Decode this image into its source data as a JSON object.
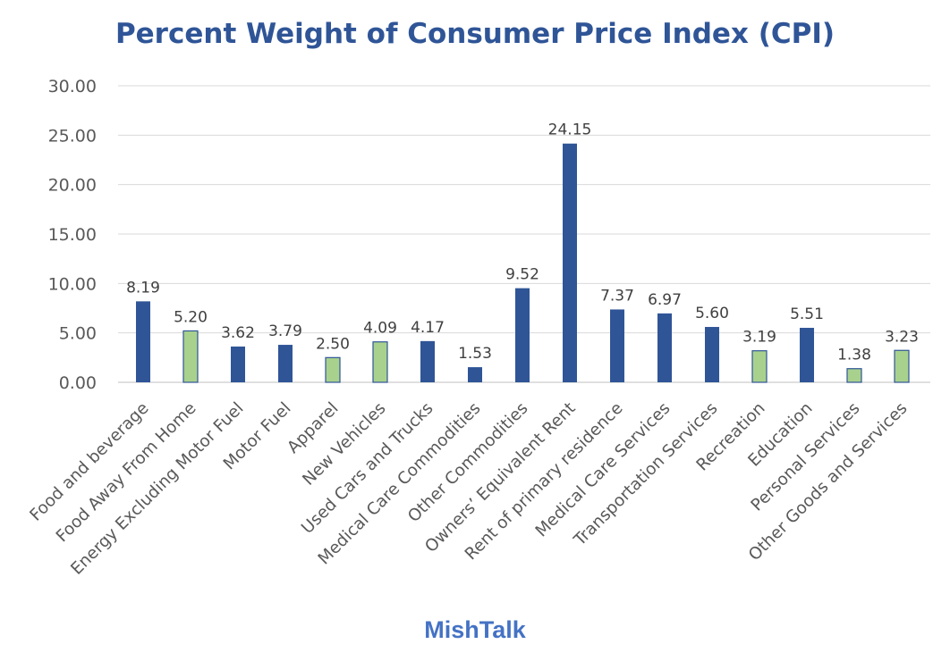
{
  "colors": {
    "title": "#2f5597",
    "brand": "#4472c4",
    "bar_blue": "#2f5597",
    "bar_green": "#a9d18e",
    "bar_green_outline": "#2f5597",
    "grid": "#d9d9d9"
  },
  "watermark": "MishTalk",
  "chart_data": {
    "type": "bar",
    "title": "Percent Weight of Consumer Price Index (CPI)",
    "xlabel": "",
    "ylabel": "",
    "ylim": [
      0,
      30
    ],
    "yticks": [
      0,
      5,
      10,
      15,
      20,
      25,
      30
    ],
    "ytick_labels": [
      "0.00",
      "5.00",
      "10.00",
      "15.00",
      "20.00",
      "25.00",
      "30.00"
    ],
    "grid": true,
    "legend": "none",
    "categories": [
      "Food and beverage",
      "Food Away From Home",
      "Energy Excluding Motor Fuel",
      "Motor Fuel",
      "Apparel",
      "New Vehicles",
      "Used Cars and Trucks",
      "Medical Care Commodities",
      "Other Commodities",
      "Owners’ Equivalent Rent",
      "Rent of primary residence",
      "Medical Care Services",
      "Transportation Services",
      "Recreation",
      "Education",
      "Personal Services",
      "Other Goods and Services"
    ],
    "values": [
      8.19,
      5.2,
      3.62,
      3.79,
      2.5,
      4.09,
      4.17,
      1.53,
      9.52,
      24.15,
      7.37,
      6.97,
      5.6,
      3.19,
      5.51,
      1.38,
      3.23
    ],
    "value_labels": [
      "8.19",
      "5.20",
      "3.62",
      "3.79",
      "2.50",
      "4.09",
      "4.17",
      "1.53",
      "9.52",
      "24.15",
      "7.37",
      "6.97",
      "5.60",
      "3.19",
      "5.51",
      "1.38",
      "3.23"
    ],
    "bar_colors": [
      "blue",
      "green",
      "blue",
      "blue",
      "green",
      "green",
      "blue",
      "blue",
      "blue",
      "blue",
      "blue",
      "blue",
      "blue",
      "green",
      "blue",
      "green",
      "green"
    ]
  }
}
